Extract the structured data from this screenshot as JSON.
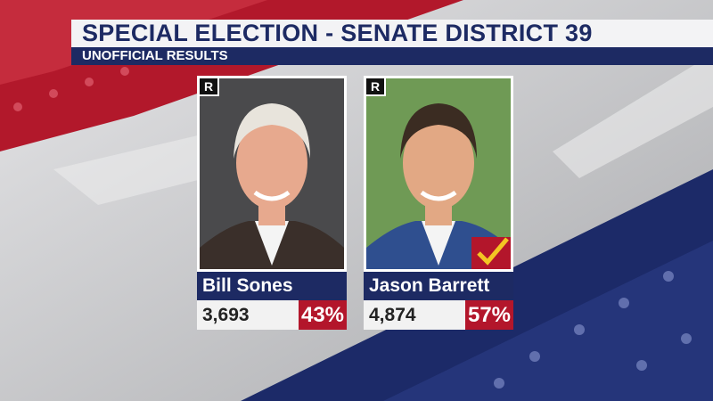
{
  "header": {
    "title": "SPECIAL ELECTION - SENATE DISTRICT 39",
    "subtitle": "UNOFFICIAL RESULTS"
  },
  "candidates": [
    {
      "party": "R",
      "name": "Bill Sones",
      "votes": "3,693",
      "percent": "43%",
      "winner": false
    },
    {
      "party": "R",
      "name": "Jason Barrett",
      "votes": "4,874",
      "percent": "57%",
      "winner": true
    }
  ]
}
